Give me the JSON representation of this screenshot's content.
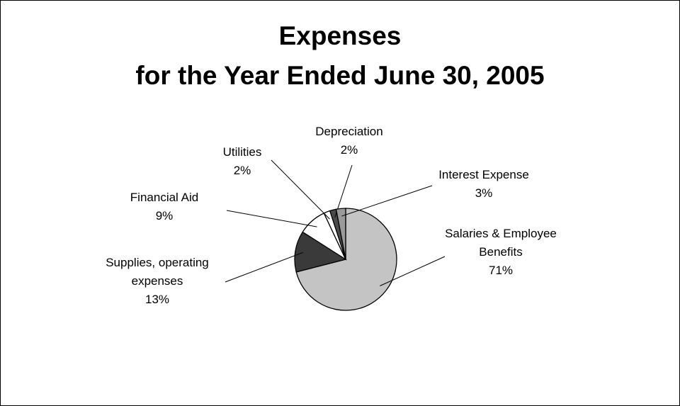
{
  "chart_data": {
    "type": "pie",
    "title": "Expenses",
    "subtitle": "for the Year Ended June 30, 2005",
    "categories": [
      "Salaries & Employee Benefits",
      "Supplies, operating expenses",
      "Financial Aid",
      "Utilities",
      "Depreciation",
      "Interest Expense"
    ],
    "values": [
      71,
      13,
      9,
      2,
      2,
      3
    ],
    "value_labels": [
      "71%",
      "13%",
      "9%",
      "2%",
      "2%",
      "3%"
    ],
    "colors": [
      "#c4c4c4",
      "#3a3a3a",
      "#ffffff",
      "#ffffff",
      "#4a4a4a",
      "#9a9a9a"
    ]
  }
}
